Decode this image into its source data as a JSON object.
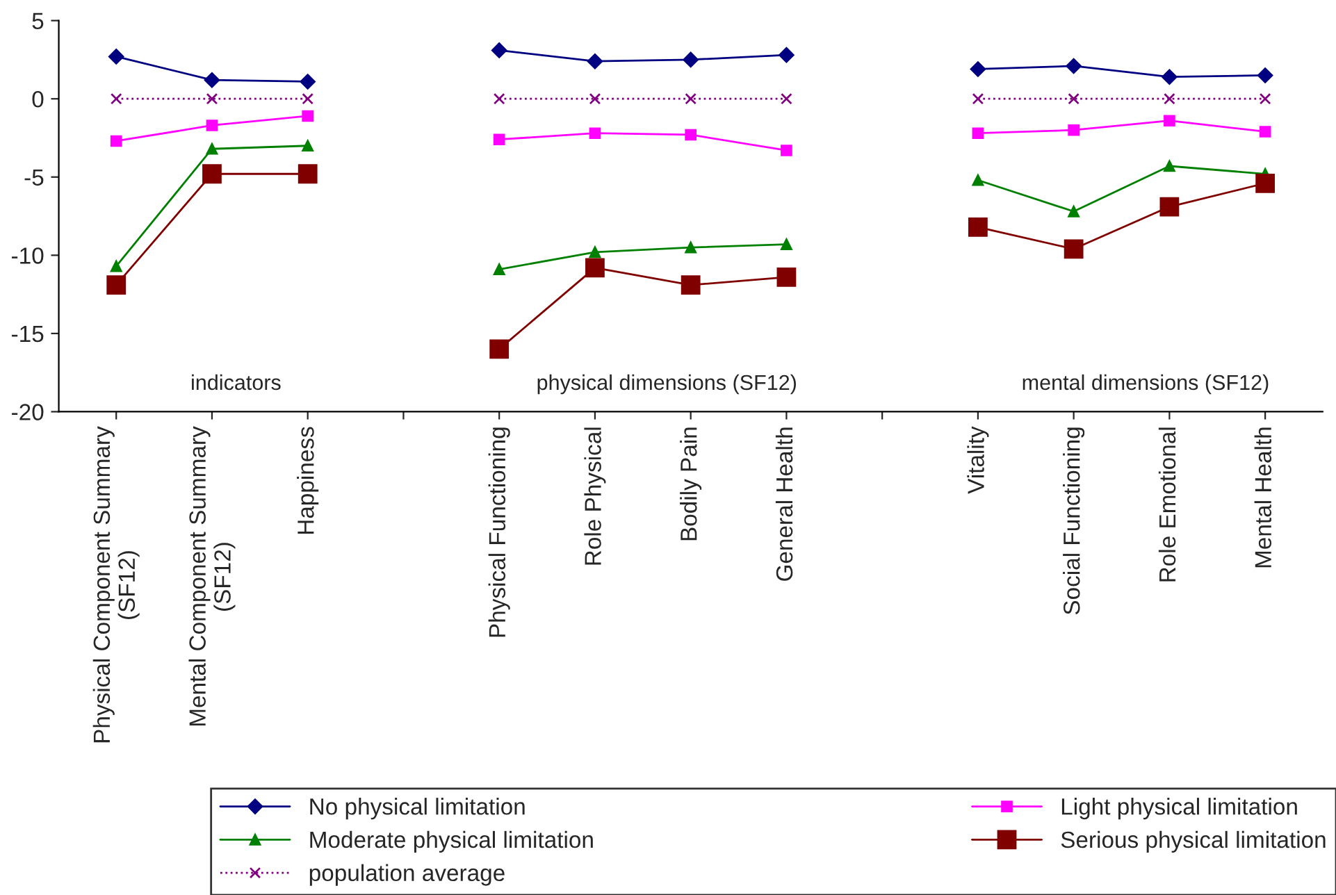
{
  "chart_data": {
    "type": "line",
    "categories": [
      "Physical Component Summary\n(SF12)",
      "Mental Component Summary\n(SF12)",
      "Happiness",
      null,
      "Physical Functioning",
      "Role Physical",
      "Bodily Pain",
      "General Health",
      null,
      "Vitality",
      "Social Functioning",
      "Role Emotional",
      "Mental Health"
    ],
    "series": [
      {
        "name": "No physical limitation",
        "color": "#000080",
        "marker": "diamond",
        "values": [
          2.7,
          1.2,
          1.1,
          null,
          3.1,
          2.4,
          2.5,
          2.8,
          null,
          1.9,
          2.1,
          1.4,
          1.5
        ]
      },
      {
        "name": "Light physical limitation",
        "color": "#ff00ff",
        "marker": "square",
        "values": [
          -2.7,
          -1.7,
          -1.1,
          null,
          -2.6,
          -2.2,
          -2.3,
          -3.3,
          null,
          -2.2,
          -2.0,
          -1.4,
          -2.1
        ]
      },
      {
        "name": "Moderate physical limitation",
        "color": "#008000",
        "marker": "triangle",
        "values": [
          -10.7,
          -3.2,
          -3.0,
          null,
          -10.9,
          -9.8,
          -9.5,
          -9.3,
          null,
          -5.2,
          -7.2,
          -4.3,
          -4.8
        ]
      },
      {
        "name": "Serious physical limitation",
        "color": "#800000",
        "marker": "square",
        "values": [
          -11.9,
          -4.8,
          -4.8,
          null,
          -16.0,
          -10.8,
          -11.9,
          -11.4,
          null,
          -8.2,
          -9.6,
          -6.9,
          -5.4
        ]
      },
      {
        "name": "population average",
        "color": "#800080",
        "marker": "cross",
        "line_style": "dotted",
        "values": [
          0,
          0,
          0,
          null,
          0,
          0,
          0,
          0,
          null,
          0,
          0,
          0,
          0
        ]
      }
    ],
    "annotations": [
      "indicators",
      "physical dimensions (SF12)",
      "mental dimensions (SF12)"
    ],
    "ylim": [
      -20,
      5
    ],
    "yticks": [
      -20,
      -15,
      -10,
      -5,
      0,
      5
    ],
    "grid": false,
    "legend": "bottom"
  }
}
